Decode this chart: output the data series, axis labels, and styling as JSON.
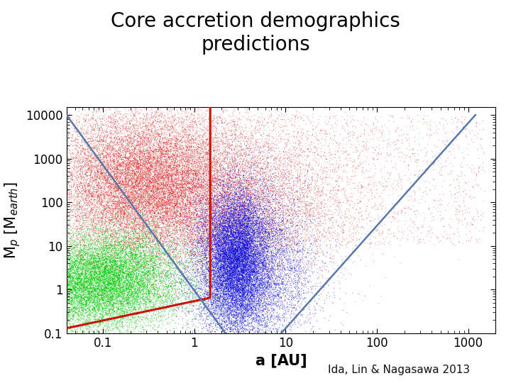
{
  "title": "Core accretion demographics\npredictions",
  "xlabel": "a [AU]",
  "ylabel": "M$_p$ [M$_{earth}$]",
  "attribution": "Ida, Lin & Nagasawa 2013",
  "xlim": [
    0.04,
    2000
  ],
  "ylim": [
    0.1,
    15000
  ],
  "background_color": "#ffffff",
  "plot_bg_color": "#ffffff",
  "red_line": {
    "x": [
      0.04,
      1.5,
      1.5
    ],
    "y": [
      0.13,
      0.65,
      15000
    ],
    "color": "#cc1100",
    "linewidth": 2.2
  },
  "blue_line_left": {
    "x": [
      0.04,
      2.2
    ],
    "y": [
      10000,
      0.1
    ],
    "color": "#5577aa",
    "linewidth": 1.8
  },
  "blue_line_right": {
    "x": [
      9,
      1200
    ],
    "y": [
      0.1,
      10000
    ],
    "color": "#5577aa",
    "linewidth": 1.8
  },
  "scatter_red": {
    "n": 30000,
    "color": "#dd0000",
    "alpha": 0.35,
    "size": 1.0
  },
  "scatter_green": {
    "n": 15000,
    "color": "#00cc00",
    "alpha": 0.5,
    "size": 1.0
  },
  "scatter_blue": {
    "n": 20000,
    "color": "#0000dd",
    "alpha": 0.4,
    "size": 1.0
  },
  "title_fontsize": 20,
  "label_fontsize": 15,
  "tick_fontsize": 12,
  "attribution_fontsize": 11
}
